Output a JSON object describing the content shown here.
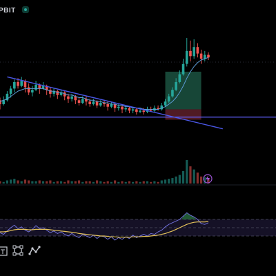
{
  "header": {
    "ticker_label": "PBIT",
    "live_icon": "live-status-dot"
  },
  "toolbar": {
    "items": [
      {
        "icon": "text-tool-icon"
      },
      {
        "icon": "selection-rect-icon"
      },
      {
        "icon": "path-tool-icon"
      }
    ]
  },
  "colors": {
    "up": "#26a69a",
    "down": "#ef5350",
    "trendline": "#4a57e6",
    "support_line": "#5b5cf0",
    "ma_line": "#5b9bd5",
    "rsi_line": "#6f6fd8",
    "rsi_ma": "#e3c15a",
    "background": "#000000"
  },
  "chart_data": {
    "type": "candlestick",
    "title": "",
    "xlabel": "",
    "ylabel": "",
    "price_range": [
      0,
      100
    ],
    "candles": [
      [
        44,
        41,
        46,
        37
      ],
      [
        41,
        44,
        47,
        40
      ],
      [
        44,
        49,
        51,
        43
      ],
      [
        49,
        53,
        55,
        46
      ],
      [
        53,
        58,
        60,
        50
      ],
      [
        58,
        55,
        61,
        53
      ],
      [
        55,
        59,
        62,
        54
      ],
      [
        59,
        54,
        60,
        50
      ],
      [
        54,
        50,
        57,
        48
      ],
      [
        50,
        52,
        55,
        47
      ],
      [
        52,
        56,
        59,
        51
      ],
      [
        56,
        53,
        57,
        49
      ],
      [
        53,
        55,
        58,
        52
      ],
      [
        55,
        52,
        56,
        48
      ],
      [
        52,
        49,
        54,
        46
      ],
      [
        49,
        51,
        53,
        47
      ],
      [
        51,
        48,
        52,
        45
      ],
      [
        48,
        50,
        52,
        47
      ],
      [
        50,
        47,
        51,
        44
      ],
      [
        47,
        45,
        49,
        42
      ],
      [
        45,
        47,
        49,
        43
      ],
      [
        47,
        44,
        48,
        41
      ],
      [
        44,
        42,
        46,
        40
      ],
      [
        42,
        45,
        47,
        41
      ],
      [
        45,
        43,
        47,
        40
      ],
      [
        43,
        41,
        45,
        39
      ],
      [
        41,
        43,
        45,
        40
      ],
      [
        43,
        40,
        44,
        38
      ],
      [
        40,
        42,
        44,
        39
      ],
      [
        42,
        41,
        44,
        39
      ],
      [
        41,
        39,
        43,
        36
      ],
      [
        39,
        41,
        43,
        38
      ],
      [
        41,
        38,
        42,
        35
      ],
      [
        38,
        39,
        41,
        36
      ],
      [
        39,
        37,
        40,
        34
      ],
      [
        37,
        38,
        40,
        35
      ],
      [
        38,
        36,
        39,
        34
      ],
      [
        36,
        37,
        39,
        34
      ],
      [
        37,
        35,
        38,
        33
      ],
      [
        35,
        36,
        38,
        34
      ],
      [
        36,
        35,
        38,
        33
      ],
      [
        35,
        37,
        39,
        34
      ],
      [
        37,
        36,
        39,
        35
      ],
      [
        36,
        38,
        40,
        35
      ],
      [
        38,
        37,
        40,
        36
      ],
      [
        37,
        40,
        42,
        36
      ],
      [
        40,
        43,
        45,
        39
      ],
      [
        43,
        47,
        49,
        42
      ],
      [
        47,
        52,
        54,
        46
      ],
      [
        52,
        58,
        61,
        51
      ],
      [
        58,
        64,
        67,
        57
      ],
      [
        64,
        72,
        76,
        63
      ],
      [
        72,
        82,
        92,
        70
      ],
      [
        82,
        78,
        90,
        74
      ],
      [
        78,
        85,
        91,
        76
      ],
      [
        85,
        80,
        88,
        77
      ],
      [
        80,
        76,
        83,
        72
      ],
      [
        76,
        79,
        82,
        74
      ],
      [
        79,
        77,
        81,
        75
      ]
    ],
    "volumes": [
      3,
      2,
      4,
      5,
      6,
      4,
      3,
      5,
      4,
      3,
      3,
      4,
      3,
      3,
      4,
      2,
      3,
      3,
      2,
      4,
      3,
      3,
      4,
      2,
      3,
      3,
      2,
      4,
      3,
      2,
      3,
      2,
      4,
      2,
      3,
      2,
      3,
      2,
      3,
      2,
      3,
      3,
      2,
      3,
      2,
      4,
      5,
      6,
      7,
      9,
      11,
      16,
      30,
      22,
      18,
      14,
      9,
      8,
      7
    ],
    "ma": [
      43,
      44,
      45,
      47,
      49,
      51,
      52,
      53,
      53,
      53,
      53,
      53,
      53,
      52,
      51,
      51,
      50,
      50,
      49,
      48,
      48,
      47,
      46,
      46,
      45,
      44,
      44,
      43,
      43,
      42,
      42,
      41,
      41,
      40,
      40,
      39,
      39,
      38,
      38,
      38,
      37,
      37,
      37,
      37,
      37,
      38,
      39,
      41,
      43,
      46,
      50,
      55,
      61,
      66,
      70,
      73,
      75,
      76,
      77
    ],
    "trendline": {
      "from": [
        2,
        62
      ],
      "to": [
        62,
        22
      ]
    },
    "support_level": 31,
    "long_position": {
      "start_index": 46,
      "end_index": 56,
      "entry": 37,
      "target": 66,
      "stop": 29
    },
    "rsi": [
      38,
      34,
      42,
      50,
      56,
      48,
      52,
      44,
      40,
      46,
      55,
      48,
      50,
      44,
      38,
      42,
      36,
      40,
      34,
      30,
      36,
      30,
      26,
      34,
      30,
      26,
      32,
      24,
      30,
      28,
      22,
      28,
      20,
      26,
      22,
      28,
      24,
      32,
      26,
      30,
      34,
      30,
      36,
      34,
      40,
      44,
      52,
      58,
      62,
      66,
      70,
      78,
      86,
      80,
      76,
      70,
      60,
      58,
      62
    ],
    "rsi_ma": [
      40,
      40,
      41,
      43,
      45,
      46,
      46,
      46,
      45,
      45,
      46,
      46,
      46,
      46,
      45,
      44,
      43,
      42,
      41,
      40,
      39,
      38,
      36,
      35,
      34,
      33,
      32,
      31,
      30,
      30,
      29,
      28,
      28,
      27,
      27,
      27,
      27,
      28,
      28,
      28,
      29,
      29,
      30,
      31,
      32,
      34,
      36,
      39,
      42,
      46,
      50,
      54,
      58,
      61,
      63,
      64,
      64,
      64,
      65
    ],
    "rsi_levels": [
      70,
      50,
      30
    ]
  }
}
